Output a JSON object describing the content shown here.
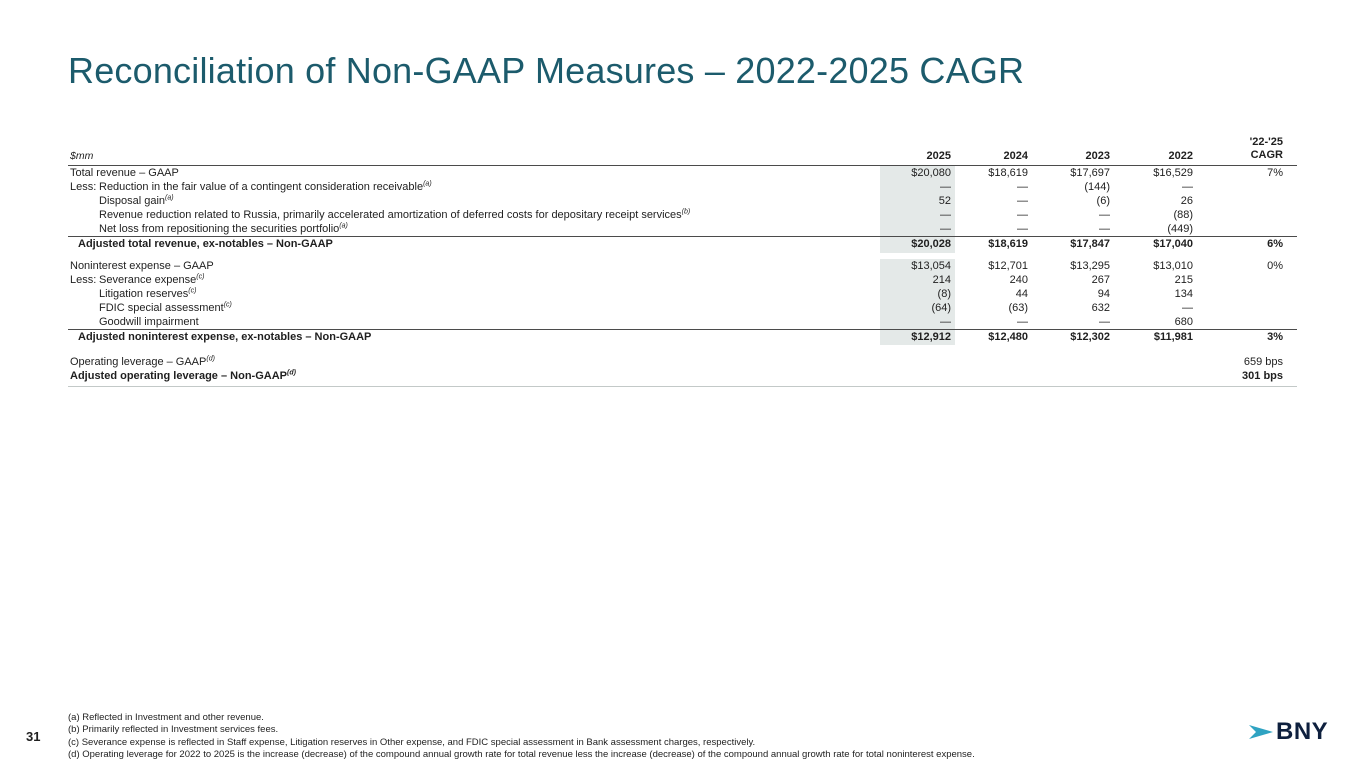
{
  "slide": {
    "title": "Reconciliation of Non-GAAP Measures – 2022-2025 CAGR",
    "page_number": "31",
    "logo_text": "BNY"
  },
  "table": {
    "unit_label": "$mm",
    "col_headers": [
      "2025",
      "2024",
      "2023",
      "2022"
    ],
    "cagr_header_line1": "'22-'25",
    "cagr_header_line2": "CAGR",
    "sections": [
      {
        "name": "revenue",
        "rows": [
          {
            "type": "main",
            "label": "Total revenue – GAAP",
            "sup": "",
            "values": [
              "$20,080",
              "$18,619",
              "$17,697",
              "$16,529"
            ],
            "cagr": "7%"
          },
          {
            "type": "less",
            "less": "Less:",
            "label": "Reduction in the fair value of a contingent consideration receivable",
            "sup": "(a)",
            "values": [
              "—",
              "—",
              "(144)",
              "—"
            ],
            "cagr": ""
          },
          {
            "type": "sub",
            "label": "Disposal gain",
            "sup": "(a)",
            "values": [
              "52",
              "—",
              "(6)",
              "26"
            ],
            "cagr": ""
          },
          {
            "type": "sub",
            "label": "Revenue reduction related to Russia, primarily accelerated amortization of deferred costs for depositary receipt services",
            "sup": "(b)",
            "values": [
              "—",
              "—",
              "—",
              "(88)"
            ],
            "cagr": ""
          },
          {
            "type": "sub",
            "label": "Net loss from repositioning the securities portfolio",
            "sup": "(a)",
            "values": [
              "—",
              "—",
              "—",
              "(449)"
            ],
            "cagr": ""
          },
          {
            "type": "total",
            "label": "Adjusted total revenue, ex-notables – Non-GAAP",
            "sup": "",
            "values": [
              "$20,028",
              "$18,619",
              "$17,847",
              "$17,040"
            ],
            "cagr": "6%"
          }
        ]
      },
      {
        "name": "expense",
        "rows": [
          {
            "type": "main",
            "label": "Noninterest expense – GAAP",
            "sup": "",
            "values": [
              "$13,054",
              "$12,701",
              "$13,295",
              "$13,010"
            ],
            "cagr": "0%"
          },
          {
            "type": "less",
            "less": "Less:",
            "label": "Severance expense",
            "sup": "(c)",
            "values": [
              "214",
              "240",
              "267",
              "215"
            ],
            "cagr": ""
          },
          {
            "type": "sub",
            "label": "Litigation reserves",
            "sup": "(c)",
            "values": [
              "(8)",
              "44",
              "94",
              "134"
            ],
            "cagr": ""
          },
          {
            "type": "sub",
            "label": "FDIC special assessment",
            "sup": "(c)",
            "values": [
              "(64)",
              "(63)",
              "632",
              "—"
            ],
            "cagr": ""
          },
          {
            "type": "sub",
            "label": "Goodwill impairment",
            "sup": "",
            "values": [
              "—",
              "—",
              "—",
              "680"
            ],
            "cagr": ""
          },
          {
            "type": "total",
            "label": "Adjusted noninterest expense, ex-notables – Non-GAAP",
            "sup": "",
            "values": [
              "$12,912",
              "$12,480",
              "$12,302",
              "$11,981"
            ],
            "cagr": "3%"
          }
        ]
      },
      {
        "name": "leverage",
        "no_highlight": true,
        "rows": [
          {
            "type": "main",
            "label": "Operating leverage – GAAP",
            "sup": "(d)",
            "values": [
              "",
              "",
              "",
              ""
            ],
            "cagr": "659 bps"
          },
          {
            "type": "bold",
            "label": "Adjusted operating leverage – Non-GAAP",
            "sup": "(d)",
            "values": [
              "",
              "",
              "",
              ""
            ],
            "cagr": "301 bps"
          }
        ]
      }
    ]
  },
  "footnotes": [
    "(a) Reflected in Investment and other revenue.",
    "(b) Primarily reflected in Investment services fees.",
    "(c) Severance expense is reflected in Staff expense, Litigation reserves in Other expense, and FDIC special assessment in Bank assessment charges, respectively.",
    "(d) Operating leverage for 2022 to 2025 is the increase (decrease) of the compound annual growth rate for total revenue less the increase (decrease) of the compound annual growth rate for total noninterest expense."
  ],
  "colors": {
    "title_teal": "#1c5b6c",
    "highlight": "#e4e9e8",
    "rule_dark": "#4b4b4b",
    "rule_light": "#c3c9c8",
    "logo_arrow": "#2fa3c2",
    "logo_navy": "#0e203e"
  }
}
